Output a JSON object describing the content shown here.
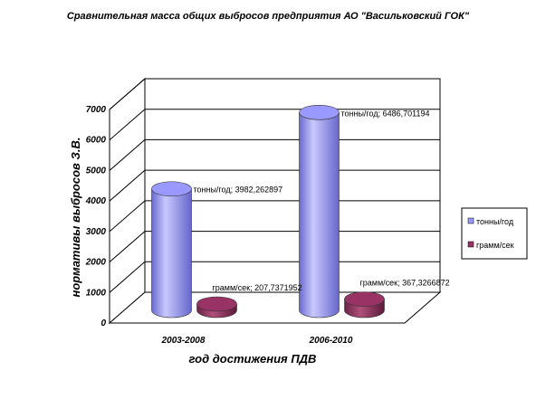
{
  "chart_data": {
    "type": "bar",
    "title": "Сравнительная масса общих выбросов предприятия АО \"Васильковский ГОК\"",
    "xlabel": "год достижения ПДВ",
    "ylabel": "нормативы выбросов З.В.",
    "categories": [
      "2003-2008",
      "2006-2010"
    ],
    "series": [
      {
        "name": "тонны/год",
        "values": [
          3982.262897,
          6486.701194
        ],
        "color": "#9999ff",
        "labels": [
          "тонны/год; 3982,262897",
          "тонны/год; 6486,701194"
        ]
      },
      {
        "name": "грамм/сек",
        "values": [
          207.7371952,
          367.3266872
        ],
        "color": "#993366",
        "labels": [
          "грамм/сек; 207,7371952",
          "грамм/сек; 367,3266872"
        ]
      }
    ],
    "ylim": [
      0,
      7000
    ],
    "yticks": [
      "0",
      "1000",
      "2000",
      "3000",
      "4000",
      "5000",
      "6000",
      "7000"
    ],
    "grid": true,
    "legend_position": "right",
    "style": "3d-cylinder"
  }
}
